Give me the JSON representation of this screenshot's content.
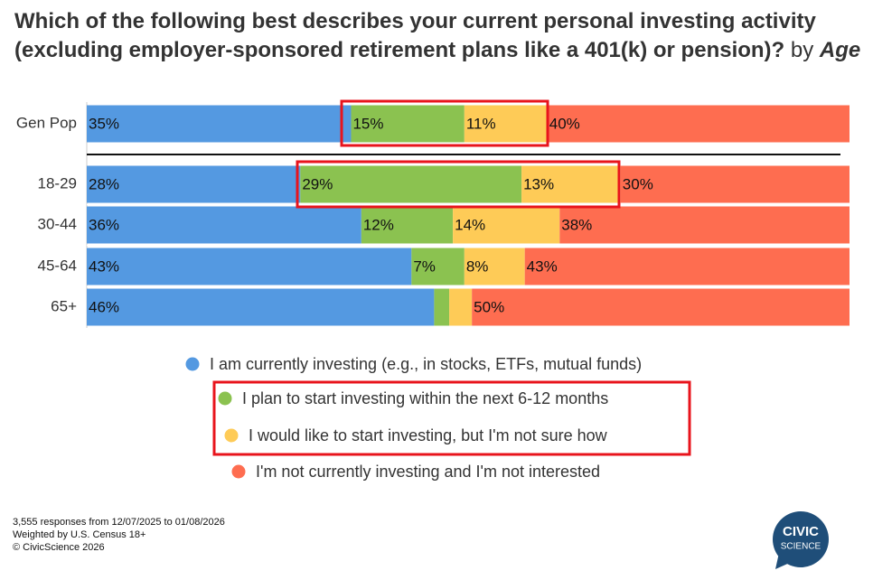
{
  "chart_data": {
    "type": "stacked-bar-horizontal",
    "title": "Which of the following best describes your current personal investing activity (excluding employer-sponsored retirement plans like a 401(k) or pension)?",
    "title_by": "by",
    "title_group": "Age",
    "categories": [
      "Gen Pop",
      "18-29",
      "30-44",
      "45-64",
      "65+"
    ],
    "series": [
      {
        "name": "I am currently investing (e.g., in stocks, ETFs, mutual funds)",
        "color": "#5499e1",
        "values": [
          35,
          28,
          36,
          43,
          46
        ],
        "value_labels": [
          "35%",
          "28%",
          "36%",
          "43%",
          "46%"
        ]
      },
      {
        "name": "I plan to start investing within the next 6-12 months",
        "color": "#8bc250",
        "values": [
          15,
          29,
          12,
          7,
          2
        ],
        "value_labels": [
          "15%",
          "29%",
          "12%",
          "7%",
          null
        ]
      },
      {
        "name": "I would like to start investing, but I'm not sure how",
        "color": "#fecb57",
        "values": [
          11,
          13,
          14,
          8,
          3
        ],
        "value_labels": [
          "11%",
          "13%",
          "14%",
          "8%",
          null
        ]
      },
      {
        "name": "I'm not currently investing and I'm not interested",
        "color": "#fe6d50",
        "values": [
          40,
          30,
          38,
          43,
          50
        ],
        "value_labels": [
          "40%",
          "30%",
          "38%",
          "43%",
          "50%"
        ]
      }
    ],
    "footnotes": [
      "3,555 responses from 12/07/2025 to 01/08/2026",
      "Weighted by U.S. Census 18+",
      "© CivicScience 2026"
    ],
    "logo": [
      "CIVIC",
      "SCIENCE"
    ]
  }
}
